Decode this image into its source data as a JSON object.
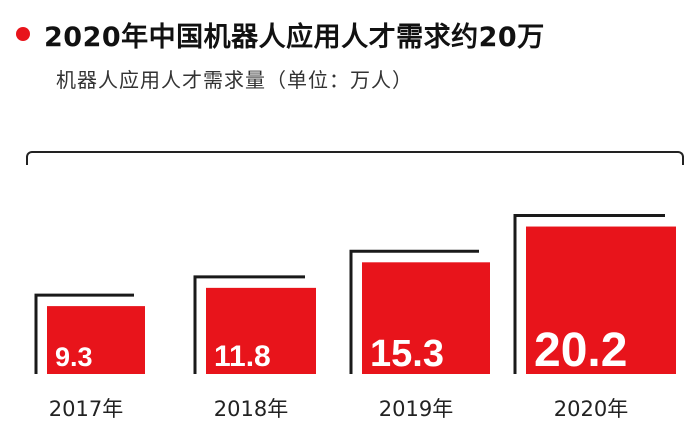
{
  "header": {
    "title": "2020年中国机器人应用人才需求约20万",
    "subtitle": "机器人应用人才需求量（单位：万人）"
  },
  "colors": {
    "accent": "#e8141b",
    "frame": "#1a1a1a",
    "value_text": "#ffffff",
    "category_text": "#222222"
  },
  "chart_data": {
    "type": "bar",
    "title": "2020年中国机器人应用人才需求约20万",
    "subtitle": "机器人应用人才需求量（单位：万人）",
    "categories": [
      "2017年",
      "2018年",
      "2019年",
      "2020年"
    ],
    "values": [
      9.3,
      11.8,
      15.3,
      20.2
    ],
    "value_labels": [
      "9.3",
      "11.8",
      "15.3",
      "20.2"
    ],
    "xlabel": "",
    "ylabel": "",
    "grid": false,
    "legend": "none"
  }
}
